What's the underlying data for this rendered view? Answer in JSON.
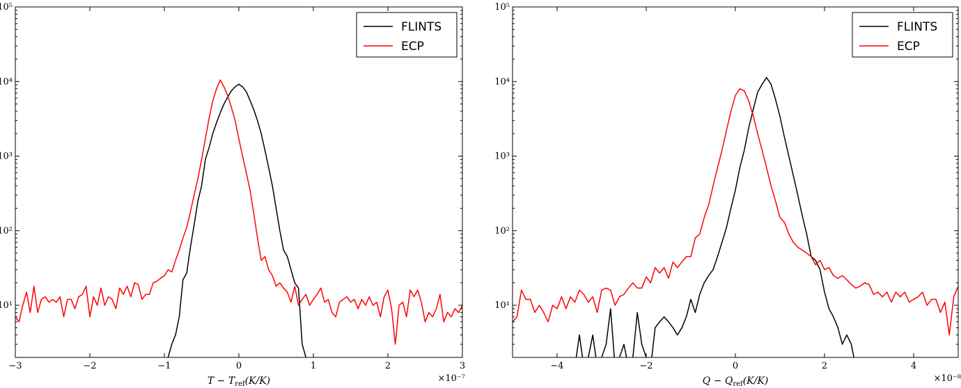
{
  "chart_data": [
    {
      "type": "line",
      "xlabel": "T − T_ref(K/K)",
      "xlabel_parts": {
        "main": "T − T",
        "sub": "ref",
        "tail": "(K/K)"
      },
      "x_multiplier": "×10⁻⁷",
      "xlim": [
        -3,
        3
      ],
      "ylim": [
        2,
        100000
      ],
      "yscale": "log",
      "x_ticks": [
        -3,
        -2,
        -1,
        0,
        1,
        2,
        3
      ],
      "x_tick_labels": [
        "−3",
        "−2",
        "−1",
        "0",
        "1",
        "2",
        "3"
      ],
      "y_ticks": [
        10,
        100,
        1000,
        10000,
        100000
      ],
      "y_tick_labels": [
        "10¹",
        "10²",
        "10³",
        "10⁴",
        "10⁵"
      ],
      "legend_position": "top-right",
      "series": [
        {
          "name": "FLINTS",
          "color": "#000000",
          "x": [
            -0.95,
            -0.9,
            -0.85,
            -0.8,
            -0.75,
            -0.7,
            -0.65,
            -0.6,
            -0.55,
            -0.5,
            -0.45,
            -0.4,
            -0.35,
            -0.3,
            -0.25,
            -0.2,
            -0.15,
            -0.1,
            -0.05,
            0,
            0.05,
            0.1,
            0.15,
            0.2,
            0.25,
            0.3,
            0.35,
            0.4,
            0.45,
            0.5,
            0.55,
            0.6,
            0.65,
            0.7,
            0.75,
            0.8,
            0.85,
            0.9,
            0.95
          ],
          "y": [
            2,
            3,
            4,
            7,
            22,
            27,
            60,
            120,
            250,
            400,
            900,
            1300,
            2000,
            2800,
            3800,
            5000,
            6200,
            7500,
            8500,
            9200,
            8500,
            7300,
            5600,
            4200,
            3000,
            2000,
            1200,
            700,
            400,
            200,
            100,
            55,
            45,
            30,
            20,
            17,
            3,
            2,
            1.5
          ]
        },
        {
          "name": "ECP",
          "color": "#ff0000",
          "x": [
            -3.0,
            -2.95,
            -2.9,
            -2.85,
            -2.8,
            -2.75,
            -2.7,
            -2.65,
            -2.6,
            -2.55,
            -2.5,
            -2.45,
            -2.4,
            -2.35,
            -2.3,
            -2.25,
            -2.2,
            -2.15,
            -2.1,
            -2.05,
            -2.0,
            -1.95,
            -1.9,
            -1.85,
            -1.8,
            -1.75,
            -1.7,
            -1.65,
            -1.6,
            -1.55,
            -1.5,
            -1.45,
            -1.4,
            -1.35,
            -1.3,
            -1.25,
            -1.2,
            -1.15,
            -1.1,
            -1.05,
            -1.0,
            -0.95,
            -0.9,
            -0.85,
            -0.8,
            -0.75,
            -0.7,
            -0.65,
            -0.6,
            -0.55,
            -0.5,
            -0.45,
            -0.4,
            -0.35,
            -0.3,
            -0.25,
            -0.2,
            -0.15,
            -0.1,
            -0.05,
            0.0,
            0.05,
            0.1,
            0.15,
            0.2,
            0.25,
            0.3,
            0.35,
            0.4,
            0.45,
            0.5,
            0.55,
            0.6,
            0.65,
            0.7,
            0.75,
            0.8,
            0.85,
            0.9,
            0.95,
            1.0,
            1.05,
            1.1,
            1.15,
            1.2,
            1.25,
            1.3,
            1.35,
            1.4,
            1.45,
            1.5,
            1.55,
            1.6,
            1.65,
            1.7,
            1.75,
            1.8,
            1.85,
            1.9,
            1.95,
            2.0,
            2.05,
            2.1,
            2.15,
            2.2,
            2.25,
            2.3,
            2.35,
            2.4,
            2.45,
            2.5,
            2.55,
            2.6,
            2.65,
            2.7,
            2.75,
            2.8,
            2.85,
            2.9,
            2.95,
            3.0
          ],
          "y": [
            7,
            6,
            10,
            15,
            8,
            18,
            8,
            12,
            13,
            11,
            12,
            11,
            13,
            7,
            12,
            12,
            9,
            13,
            14,
            18,
            7,
            13,
            10,
            17,
            10,
            13,
            12,
            9,
            17,
            14,
            18,
            13,
            20,
            19,
            12,
            14,
            14,
            20,
            21,
            23,
            25,
            30,
            28,
            40,
            55,
            80,
            110,
            180,
            300,
            500,
            900,
            1700,
            3200,
            5500,
            8000,
            10500,
            8500,
            6500,
            4500,
            3000,
            1700,
            1000,
            600,
            350,
            170,
            80,
            40,
            45,
            30,
            25,
            18,
            20,
            17,
            15,
            11,
            18,
            10,
            12,
            14,
            10,
            12,
            14,
            17,
            11,
            12,
            8,
            7,
            11,
            12,
            13,
            11,
            12,
            9,
            12,
            10,
            13,
            10,
            11,
            7,
            13,
            16,
            9,
            3,
            10,
            11,
            7,
            16,
            13,
            16,
            11,
            6,
            8,
            7,
            9,
            14,
            6,
            8,
            7,
            9,
            8,
            10
          ]
        }
      ]
    },
    {
      "type": "line",
      "xlabel": "Q − Q_ref(K/K)",
      "xlabel_parts": {
        "main": "Q − Q",
        "sub": "ref",
        "tail": "(K/K)"
      },
      "x_multiplier": "×10⁻⁸",
      "xlim": [
        -5,
        5
      ],
      "ylim": [
        2,
        100000
      ],
      "yscale": "log",
      "x_ticks": [
        -4,
        -2,
        0,
        2,
        4
      ],
      "x_tick_labels": [
        "−4",
        "−2",
        "0",
        "2",
        "4"
      ],
      "y_ticks": [
        10,
        100,
        1000,
        10000,
        100000
      ],
      "y_tick_labels": [
        "10¹",
        "10²",
        "10³",
        "10⁴",
        "10⁵"
      ],
      "legend_position": "top-right",
      "series": [
        {
          "name": "FLINTS",
          "color": "#000000",
          "x": [
            -3.6,
            -3.5,
            -3.4,
            -3.3,
            -3.2,
            -3.1,
            -3.0,
            -2.9,
            -2.8,
            -2.7,
            -2.6,
            -2.5,
            -2.4,
            -2.3,
            -2.2,
            -2.1,
            -2.0,
            -1.9,
            -1.8,
            -1.7,
            -1.6,
            -1.5,
            -1.4,
            -1.3,
            -1.2,
            -1.1,
            -1.0,
            -0.9,
            -0.8,
            -0.7,
            -0.6,
            -0.5,
            -0.4,
            -0.3,
            -0.2,
            -0.1,
            0.0,
            0.1,
            0.2,
            0.3,
            0.4,
            0.5,
            0.6,
            0.7,
            0.8,
            0.9,
            1.0,
            1.1,
            1.2,
            1.3,
            1.4,
            1.5,
            1.6,
            1.7,
            1.8,
            1.9,
            2.0,
            2.1,
            2.2,
            2.3,
            2.4,
            2.5,
            2.6,
            2.7
          ],
          "y": [
            1.5,
            4,
            1.5,
            2,
            4,
            1.5,
            2,
            3,
            9,
            1.5,
            2,
            3,
            1.5,
            2,
            8,
            3,
            2,
            1.5,
            5,
            6,
            7,
            6,
            5,
            4,
            5,
            7,
            12,
            8,
            14,
            20,
            25,
            30,
            45,
            70,
            110,
            200,
            350,
            700,
            1200,
            2400,
            4200,
            7200,
            9200,
            11300,
            9200,
            5800,
            3400,
            1800,
            1000,
            550,
            300,
            160,
            90,
            45,
            40,
            30,
            15,
            9,
            7,
            5,
            3,
            4,
            3,
            1.5
          ]
        },
        {
          "name": "ECP",
          "color": "#ff0000",
          "x": [
            -5.0,
            -4.9,
            -4.8,
            -4.7,
            -4.6,
            -4.5,
            -4.4,
            -4.3,
            -4.2,
            -4.1,
            -4.0,
            -3.9,
            -3.8,
            -3.7,
            -3.6,
            -3.5,
            -3.4,
            -3.3,
            -3.2,
            -3.1,
            -3.0,
            -2.9,
            -2.8,
            -2.7,
            -2.6,
            -2.5,
            -2.4,
            -2.3,
            -2.2,
            -2.1,
            -2.0,
            -1.9,
            -1.8,
            -1.7,
            -1.6,
            -1.5,
            -1.4,
            -1.3,
            -1.2,
            -1.1,
            -1.0,
            -0.9,
            -0.8,
            -0.7,
            -0.6,
            -0.5,
            -0.4,
            -0.3,
            -0.2,
            -0.1,
            0.0,
            0.1,
            0.2,
            0.3,
            0.4,
            0.5,
            0.6,
            0.7,
            0.8,
            0.9,
            1.0,
            1.1,
            1.2,
            1.3,
            1.4,
            1.5,
            1.6,
            1.7,
            1.8,
            1.9,
            2.0,
            2.1,
            2.2,
            2.3,
            2.4,
            2.5,
            2.6,
            2.7,
            2.8,
            2.9,
            3.0,
            3.1,
            3.2,
            3.3,
            3.4,
            3.5,
            3.6,
            3.7,
            3.8,
            3.9,
            4.0,
            4.1,
            4.2,
            4.3,
            4.4,
            4.5,
            4.6,
            4.7,
            4.8,
            4.9,
            5.0
          ],
          "y": [
            6,
            7,
            16,
            12,
            12,
            8,
            10,
            8,
            6,
            10,
            9,
            13,
            9,
            13,
            11,
            16,
            14,
            11,
            13,
            8,
            16,
            17,
            16,
            10,
            13,
            14,
            17,
            20,
            17,
            17,
            24,
            20,
            32,
            27,
            32,
            23,
            38,
            32,
            38,
            45,
            45,
            80,
            90,
            150,
            220,
            400,
            700,
            1200,
            2200,
            4000,
            6500,
            8000,
            7500,
            5500,
            3500,
            2000,
            1200,
            700,
            400,
            250,
            150,
            130,
            90,
            70,
            60,
            55,
            50,
            45,
            35,
            40,
            30,
            32,
            25,
            23,
            25,
            22,
            19,
            17,
            18,
            20,
            19,
            14,
            15,
            13,
            15,
            11,
            15,
            13,
            15,
            11,
            12,
            13,
            15,
            10,
            12,
            12,
            8,
            11,
            4,
            13,
            18
          ]
        }
      ]
    }
  ]
}
